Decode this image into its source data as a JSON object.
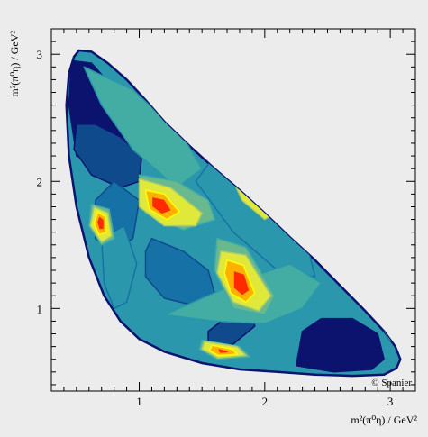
{
  "chart_data": {
    "type": "heatmap",
    "xlabel": "m²(π⁰η) / GeV²",
    "ylabel": "m²(π⁰η) / GeV²",
    "xlim": [
      0.3,
      3.2
    ],
    "ylim": [
      0.35,
      3.2
    ],
    "x_ticks": [
      "1",
      "2",
      "3"
    ],
    "x_tick_values": [
      1,
      2,
      3
    ],
    "y_ticks": [
      "1",
      "2",
      "3"
    ],
    "y_tick_values": [
      1,
      2,
      3
    ],
    "credit": "© Spanier",
    "grid": false,
    "color_scale": [
      "#0b136f",
      "#0f4a8c",
      "#1672a6",
      "#2b97ad",
      "#43aca3",
      "#6ab98e",
      "#a8cc6b",
      "#e0e83a",
      "#ffff00",
      "#ffb000",
      "#ff2a00"
    ],
    "dalitz_boundary": [
      [
        0.52,
        3.03
      ],
      [
        0.62,
        3.02
      ],
      [
        0.75,
        2.93
      ],
      [
        0.9,
        2.8
      ],
      [
        1.05,
        2.64
      ],
      [
        1.2,
        2.47
      ],
      [
        1.4,
        2.28
      ],
      [
        1.6,
        2.1
      ],
      [
        1.8,
        1.93
      ],
      [
        2.0,
        1.75
      ],
      [
        2.2,
        1.56
      ],
      [
        2.4,
        1.38
      ],
      [
        2.6,
        1.18
      ],
      [
        2.8,
        0.98
      ],
      [
        2.95,
        0.82
      ],
      [
        3.04,
        0.7
      ],
      [
        3.08,
        0.6
      ],
      [
        3.05,
        0.53
      ],
      [
        2.95,
        0.48
      ],
      [
        2.7,
        0.47
      ],
      [
        2.4,
        0.48
      ],
      [
        2.1,
        0.5
      ],
      [
        1.8,
        0.52
      ],
      [
        1.5,
        0.57
      ],
      [
        1.2,
        0.66
      ],
      [
        1.0,
        0.76
      ],
      [
        0.85,
        0.9
      ],
      [
        0.72,
        1.1
      ],
      [
        0.6,
        1.4
      ],
      [
        0.5,
        1.8
      ],
      [
        0.44,
        2.2
      ],
      [
        0.42,
        2.6
      ],
      [
        0.44,
        2.85
      ],
      [
        0.48,
        2.98
      ]
    ],
    "regions": [
      {
        "level": 0,
        "points": [
          [
            0.46,
            2.95
          ],
          [
            0.62,
            2.93
          ],
          [
            0.78,
            2.75
          ],
          [
            0.92,
            2.55
          ],
          [
            0.98,
            2.35
          ],
          [
            0.9,
            2.2
          ],
          [
            0.68,
            2.15
          ],
          [
            0.5,
            2.2
          ],
          [
            0.44,
            2.6
          ]
        ]
      },
      {
        "level": 0,
        "points": [
          [
            2.25,
            0.55
          ],
          [
            2.55,
            0.5
          ],
          [
            2.85,
            0.52
          ],
          [
            2.95,
            0.6
          ],
          [
            2.9,
            0.8
          ],
          [
            2.7,
            0.92
          ],
          [
            2.45,
            0.92
          ],
          [
            2.3,
            0.82
          ]
        ]
      },
      {
        "level": 1,
        "points": [
          [
            1.55,
            0.68
          ],
          [
            1.75,
            0.72
          ],
          [
            1.92,
            0.86
          ],
          [
            1.9,
            0.98
          ],
          [
            1.72,
            0.95
          ],
          [
            1.55,
            0.82
          ]
        ]
      },
      {
        "level": 1,
        "points": [
          [
            0.5,
            2.45
          ],
          [
            0.48,
            2.25
          ],
          [
            0.62,
            2.05
          ],
          [
            0.85,
            1.95
          ],
          [
            1.0,
            2.0
          ],
          [
            1.02,
            2.2
          ],
          [
            0.85,
            2.35
          ],
          [
            0.65,
            2.45
          ]
        ]
      },
      {
        "level": 2,
        "points": [
          [
            1.1,
            1.55
          ],
          [
            1.35,
            1.45
          ],
          [
            1.55,
            1.3
          ],
          [
            1.6,
            1.12
          ],
          [
            1.45,
            1.02
          ],
          [
            1.2,
            1.08
          ],
          [
            1.05,
            1.25
          ],
          [
            1.05,
            1.45
          ]
        ]
      },
      {
        "level": 2,
        "points": [
          [
            0.8,
            2.0
          ],
          [
            1.0,
            1.85
          ],
          [
            0.95,
            1.55
          ],
          [
            0.78,
            1.45
          ],
          [
            0.65,
            1.55
          ],
          [
            0.65,
            1.85
          ]
        ]
      },
      {
        "level": 3,
        "points": [
          [
            0.88,
            1.65
          ],
          [
            0.98,
            1.35
          ],
          [
            0.9,
            1.05
          ],
          [
            0.8,
            1.0
          ],
          [
            0.72,
            1.2
          ],
          [
            0.7,
            1.55
          ]
        ]
      },
      {
        "level": 3,
        "points": [
          [
            1.6,
            2.2
          ],
          [
            2.1,
            1.75
          ],
          [
            2.35,
            1.45
          ],
          [
            2.4,
            1.25
          ],
          [
            2.1,
            1.3
          ],
          [
            1.75,
            1.6
          ],
          [
            1.45,
            2.0
          ]
        ]
      },
      {
        "level": 4,
        "points": [
          [
            0.56,
            2.9
          ],
          [
            0.95,
            2.72
          ],
          [
            1.35,
            2.35
          ],
          [
            1.5,
            2.1
          ],
          [
            1.3,
            1.95
          ],
          [
            0.95,
            2.25
          ],
          [
            0.7,
            2.6
          ]
        ]
      },
      {
        "level": 4,
        "points": [
          [
            1.2,
            0.95
          ],
          [
            1.6,
            0.9
          ],
          [
            2.0,
            0.88
          ],
          [
            2.3,
            1.0
          ],
          [
            2.45,
            1.2
          ],
          [
            2.2,
            1.35
          ],
          [
            1.9,
            1.25
          ],
          [
            1.55,
            1.1
          ]
        ]
      },
      {
        "level": 4,
        "points": [
          [
            2.45,
            1.35
          ],
          [
            2.8,
            1.05
          ],
          [
            3.0,
            0.75
          ],
          [
            2.95,
            0.95
          ],
          [
            2.7,
            1.25
          ]
        ]
      },
      {
        "level": 5,
        "points": [
          [
            1.0,
            2.05
          ],
          [
            1.3,
            2.0
          ],
          [
            1.55,
            1.85
          ],
          [
            1.6,
            1.7
          ],
          [
            1.35,
            1.62
          ],
          [
            1.05,
            1.75
          ]
        ]
      },
      {
        "level": 5,
        "points": [
          [
            1.62,
            1.55
          ],
          [
            1.85,
            1.48
          ],
          [
            2.08,
            1.1
          ],
          [
            2.0,
            0.95
          ],
          [
            1.75,
            1.0
          ],
          [
            1.6,
            1.3
          ]
        ]
      },
      {
        "level": 5,
        "points": [
          [
            0.62,
            1.82
          ],
          [
            0.76,
            1.78
          ],
          [
            0.8,
            1.55
          ],
          [
            0.7,
            1.5
          ],
          [
            0.6,
            1.65
          ]
        ]
      },
      {
        "level": 5,
        "points": [
          [
            1.5,
            0.75
          ],
          [
            1.8,
            0.7
          ],
          [
            1.88,
            0.62
          ],
          [
            1.62,
            0.6
          ],
          [
            1.48,
            0.68
          ]
        ]
      },
      {
        "level": 7,
        "points": [
          [
            1.0,
            2.02
          ],
          [
            1.25,
            1.95
          ],
          [
            1.5,
            1.75
          ],
          [
            1.45,
            1.65
          ],
          [
            1.2,
            1.65
          ],
          [
            1.0,
            1.8
          ]
        ]
      },
      {
        "level": 7,
        "points": [
          [
            1.65,
            1.45
          ],
          [
            1.85,
            1.42
          ],
          [
            2.05,
            1.1
          ],
          [
            1.95,
            0.98
          ],
          [
            1.75,
            1.05
          ],
          [
            1.62,
            1.28
          ]
        ]
      },
      {
        "level": 7,
        "points": [
          [
            0.64,
            1.8
          ],
          [
            0.75,
            1.75
          ],
          [
            0.78,
            1.57
          ],
          [
            0.7,
            1.52
          ],
          [
            0.61,
            1.65
          ]
        ]
      },
      {
        "level": 7,
        "points": [
          [
            1.52,
            0.74
          ],
          [
            1.78,
            0.7
          ],
          [
            1.85,
            0.63
          ],
          [
            1.63,
            0.61
          ],
          [
            1.5,
            0.68
          ]
        ]
      },
      {
        "level": 7,
        "points": [
          [
            1.75,
            2.0
          ],
          [
            1.95,
            1.85
          ],
          [
            2.08,
            1.75
          ],
          [
            2.0,
            1.7
          ],
          [
            1.82,
            1.85
          ]
        ]
      },
      {
        "level": 9,
        "points": [
          [
            1.05,
            1.93
          ],
          [
            1.2,
            1.9
          ],
          [
            1.32,
            1.76
          ],
          [
            1.22,
            1.7
          ],
          [
            1.08,
            1.78
          ]
        ]
      },
      {
        "level": 9,
        "points": [
          [
            1.7,
            1.38
          ],
          [
            1.83,
            1.34
          ],
          [
            1.92,
            1.12
          ],
          [
            1.85,
            1.05
          ],
          [
            1.73,
            1.12
          ],
          [
            1.68,
            1.28
          ]
        ]
      },
      {
        "level": 9,
        "points": [
          [
            0.67,
            1.76
          ],
          [
            0.73,
            1.72
          ],
          [
            0.74,
            1.6
          ],
          [
            0.68,
            1.58
          ],
          [
            0.64,
            1.67
          ]
        ]
      },
      {
        "level": 9,
        "points": [
          [
            1.58,
            0.71
          ],
          [
            1.74,
            0.68
          ],
          [
            1.78,
            0.64
          ],
          [
            1.63,
            0.63
          ],
          [
            1.56,
            0.67
          ]
        ]
      },
      {
        "level": 10,
        "points": [
          [
            1.1,
            1.88
          ],
          [
            1.2,
            1.86
          ],
          [
            1.26,
            1.77
          ],
          [
            1.18,
            1.74
          ],
          [
            1.1,
            1.8
          ]
        ]
      },
      {
        "level": 10,
        "points": [
          [
            1.75,
            1.3
          ],
          [
            1.84,
            1.27
          ],
          [
            1.88,
            1.14
          ],
          [
            1.82,
            1.1
          ],
          [
            1.75,
            1.16
          ]
        ]
      },
      {
        "level": 10,
        "points": [
          [
            0.68,
            1.73
          ],
          [
            0.72,
            1.7
          ],
          [
            0.72,
            1.62
          ],
          [
            0.68,
            1.62
          ],
          [
            0.66,
            1.68
          ]
        ]
      },
      {
        "level": 10,
        "points": [
          [
            1.62,
            0.69
          ],
          [
            1.7,
            0.67
          ],
          [
            1.72,
            0.65
          ],
          [
            1.64,
            0.645
          ]
        ]
      }
    ]
  }
}
